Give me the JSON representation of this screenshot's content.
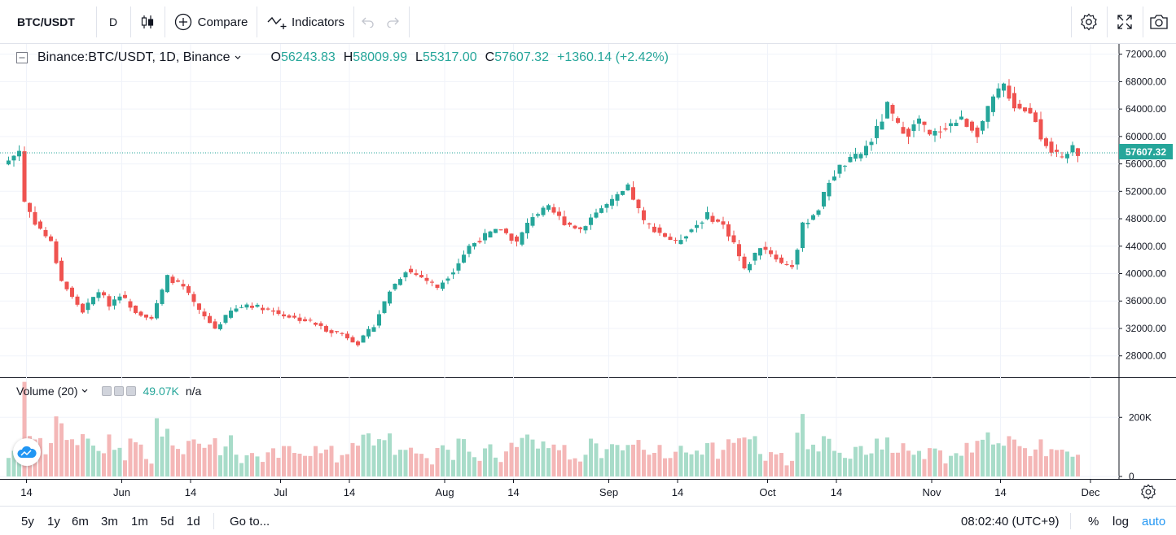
{
  "toolbar": {
    "symbol": "BTC/USDT",
    "interval": "D",
    "compare_label": "Compare",
    "indicators_label": "Indicators"
  },
  "legend": {
    "title": "Binance:BTC/USDT, 1D, Binance",
    "o_label": "O",
    "o_value": "56243.83",
    "h_label": "H",
    "h_value": "58009.99",
    "l_label": "L",
    "l_value": "55317.00",
    "c_label": "C",
    "c_value": "57607.32",
    "change": "+1360.14 (+2.42%)"
  },
  "volume_legend": {
    "title": "Volume (20)",
    "value": "49.07K",
    "ma": "n/a"
  },
  "bottombar": {
    "ranges": [
      "5y",
      "1y",
      "6m",
      "3m",
      "1m",
      "5d",
      "1d"
    ],
    "goto_label": "Go to...",
    "time": "08:02:40 (UTC+9)",
    "percent_label": "%",
    "log_label": "log",
    "auto_label": "auto"
  },
  "colors": {
    "up": "#26a69a",
    "down": "#ef5350",
    "vol_up": "#a8dcc9",
    "vol_down": "#f4b7b7"
  },
  "chart_data": {
    "type": "candlestick",
    "title": "Binance:BTC/USDT, 1D, Binance",
    "current_price": "57607.32",
    "y_ticks": [
      "72000.00",
      "68000.00",
      "64000.00",
      "60000.00",
      "56000.00",
      "52000.00",
      "48000.00",
      "44000.00",
      "40000.00",
      "36000.00",
      "32000.00",
      "28000.00"
    ],
    "ylim": [
      25000,
      73500
    ],
    "volume_ticks": [
      "200K",
      "0"
    ],
    "volume_ylim": [
      0,
      330000
    ],
    "x_tick_labels": [
      "14",
      "Jun",
      "14",
      "Jul",
      "14",
      "Aug",
      "14",
      "Sep",
      "14",
      "Oct",
      "14",
      "Nov",
      "14",
      "Dec"
    ],
    "x_ticks_day_index": [
      0,
      18,
      31,
      48,
      61,
      79,
      92,
      110,
      123,
      140,
      153,
      171,
      184,
      201
    ],
    "anchors": [
      [
        0,
        56500
      ],
      [
        2,
        58000
      ],
      [
        3,
        50500
      ],
      [
        5,
        47500
      ],
      [
        8,
        44500
      ],
      [
        10,
        39000
      ],
      [
        12,
        36500
      ],
      [
        14,
        34500
      ],
      [
        17,
        37500
      ],
      [
        19,
        35500
      ],
      [
        21,
        37000
      ],
      [
        24,
        34500
      ],
      [
        27,
        33500
      ],
      [
        30,
        39500
      ],
      [
        33,
        38000
      ],
      [
        36,
        34500
      ],
      [
        39,
        32000
      ],
      [
        42,
        34500
      ],
      [
        45,
        35500
      ],
      [
        48,
        35000
      ],
      [
        51,
        34200
      ],
      [
        54,
        33500
      ],
      [
        57,
        33000
      ],
      [
        60,
        31800
      ],
      [
        63,
        31200
      ],
      [
        66,
        29800
      ],
      [
        69,
        32500
      ],
      [
        72,
        37500
      ],
      [
        75,
        40500
      ],
      [
        78,
        39500
      ],
      [
        81,
        38000
      ],
      [
        84,
        40500
      ],
      [
        87,
        44000
      ],
      [
        90,
        45500
      ],
      [
        93,
        46500
      ],
      [
        96,
        44500
      ],
      [
        99,
        48500
      ],
      [
        102,
        49500
      ],
      [
        105,
        47500
      ],
      [
        108,
        46500
      ],
      [
        111,
        49000
      ],
      [
        114,
        50500
      ],
      [
        117,
        52500
      ],
      [
        118,
        51000
      ],
      [
        120,
        47500
      ],
      [
        123,
        46000
      ],
      [
        126,
        44500
      ],
      [
        129,
        46500
      ],
      [
        132,
        48500
      ],
      [
        135,
        47000
      ],
      [
        137,
        44500
      ],
      [
        139,
        40500
      ],
      [
        142,
        44000
      ],
      [
        144,
        43000
      ],
      [
        146,
        41500
      ],
      [
        148,
        41200
      ],
      [
        149,
        43500
      ],
      [
        150,
        47000
      ],
      [
        153,
        49500
      ],
      [
        155,
        53500
      ],
      [
        157,
        55500
      ],
      [
        159,
        56500
      ],
      [
        161,
        57500
      ],
      [
        163,
        59500
      ],
      [
        165,
        62500
      ],
      [
        166,
        64500
      ],
      [
        168,
        61500
      ],
      [
        170,
        60500
      ],
      [
        172,
        62500
      ],
      [
        174,
        60000
      ],
      [
        177,
        61500
      ],
      [
        180,
        62500
      ],
      [
        183,
        60500
      ],
      [
        186,
        65500
      ],
      [
        188,
        67500
      ],
      [
        190,
        64500
      ],
      [
        192,
        64000
      ],
      [
        194,
        62500
      ],
      [
        195,
        60000
      ],
      [
        197,
        58000
      ],
      [
        199,
        56500
      ],
      [
        201,
        58500
      ],
      [
        202,
        57600
      ]
    ]
  }
}
